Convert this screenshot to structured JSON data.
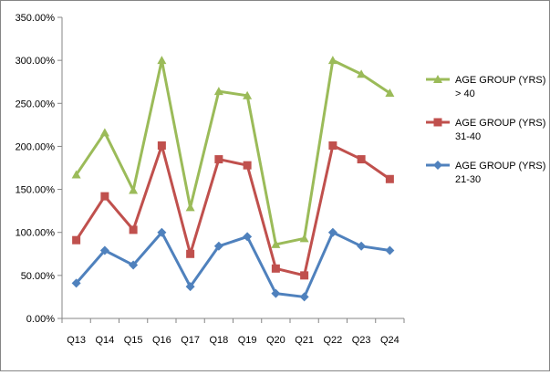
{
  "chart_data": {
    "type": "line",
    "categories": [
      "Q13",
      "Q14",
      "Q15",
      "Q16",
      "Q17",
      "Q18",
      "Q19",
      "Q20",
      "Q21",
      "Q22",
      "Q23",
      "Q24"
    ],
    "series": [
      {
        "name": "AGE GROUP (YRS) > 40",
        "legend_lines": [
          "AGE GROUP (YRS)",
          "> 40"
        ],
        "color": "#9bbb59",
        "marker": "triangle",
        "values": [
          167,
          216,
          149,
          300,
          129,
          264,
          259,
          86,
          93,
          300,
          284,
          262
        ]
      },
      {
        "name": "AGE GROUP (YRS) 31-40",
        "legend_lines": [
          "AGE GROUP (YRS)",
          "31-40"
        ],
        "color": "#c0504d",
        "marker": "square",
        "values": [
          91,
          142,
          103,
          201,
          75,
          185,
          178,
          58,
          50,
          201,
          185,
          162
        ]
      },
      {
        "name": "AGE GROUP (YRS) 21-30",
        "legend_lines": [
          "AGE GROUP (YRS)",
          "21-30"
        ],
        "color": "#4f81bd",
        "marker": "diamond",
        "values": [
          41,
          79,
          62,
          100,
          37,
          84,
          95,
          29,
          25,
          100,
          84,
          79
        ]
      }
    ],
    "y_ticks": [
      "0.00%",
      "50.00%",
      "100.00%",
      "150.00%",
      "200.00%",
      "250.00%",
      "300.00%",
      "350.00%"
    ],
    "ylim": [
      0,
      350
    ],
    "y_unit": "percent",
    "grid": false,
    "legend_position": "right"
  }
}
